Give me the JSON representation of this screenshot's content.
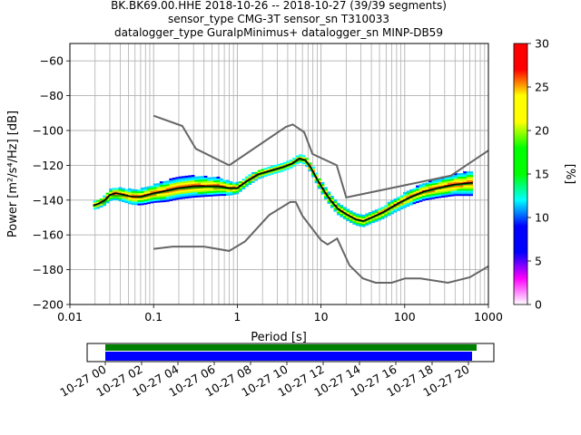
{
  "chart_data": {
    "type": "heatmap",
    "title_lines": [
      "BK.BK69.00.HHE   2018-10-26 -- 2018-10-27  (39/39 segments)",
      "sensor_type CMG-3T sensor_sn T310033",
      "datalogger_type GuralpMinimus+ datalogger_sn MINP-DB59"
    ],
    "xlabel": "Period [s]",
    "ylabel": "Power [m²/s⁴/Hz] [dB]",
    "x_scale": "log",
    "xlim": [
      0.01,
      1000
    ],
    "ylim": [
      -200,
      -50
    ],
    "grid": true,
    "xticks": [
      {
        "v": 0.01,
        "label": "0.01"
      },
      {
        "v": 0.1,
        "label": "0.1"
      },
      {
        "v": 1,
        "label": "1"
      },
      {
        "v": 10,
        "label": "10"
      },
      {
        "v": 100,
        "label": "100"
      },
      {
        "v": 1000,
        "label": "1000"
      }
    ],
    "yticks": [
      -60,
      -80,
      -100,
      -120,
      -140,
      -160,
      -180,
      -200
    ],
    "nhnm": [
      [
        0.1,
        -91.5
      ],
      [
        0.22,
        -97.4
      ],
      [
        0.32,
        -110.5
      ],
      [
        0.8,
        -120
      ],
      [
        3.8,
        -97.9
      ],
      [
        4.6,
        -96.5
      ],
      [
        6.3,
        -101
      ],
      [
        7.9,
        -113.5
      ],
      [
        15.4,
        -120
      ],
      [
        20,
        -138.5
      ],
      [
        354.8,
        -126
      ],
      [
        1000,
        -111.5
      ]
    ],
    "nlnm": [
      [
        0.1,
        -168
      ],
      [
        0.17,
        -166.7
      ],
      [
        0.4,
        -166.7
      ],
      [
        0.8,
        -169.2
      ],
      [
        1.24,
        -163.7
      ],
      [
        2.4,
        -148.6
      ],
      [
        4.3,
        -141.1
      ],
      [
        5,
        -141.1
      ],
      [
        6,
        -149
      ],
      [
        10,
        -163
      ],
      [
        12,
        -165.5
      ],
      [
        15.6,
        -162.1
      ],
      [
        21.9,
        -177.5
      ],
      [
        31.6,
        -185
      ],
      [
        45,
        -187.5
      ],
      [
        70,
        -187.5
      ],
      [
        101,
        -185
      ],
      [
        154,
        -185
      ],
      [
        328,
        -187.5
      ],
      [
        600,
        -184.4
      ],
      [
        1000,
        -178
      ]
    ],
    "mode_curve": [
      [
        0.019,
        -143
      ],
      [
        0.022,
        -142
      ],
      [
        0.026,
        -140
      ],
      [
        0.03,
        -137
      ],
      [
        0.035,
        -136
      ],
      [
        0.045,
        -137
      ],
      [
        0.055,
        -138
      ],
      [
        0.07,
        -138
      ],
      [
        0.085,
        -137
      ],
      [
        0.1,
        -136
      ],
      [
        0.13,
        -135
      ],
      [
        0.16,
        -134
      ],
      [
        0.2,
        -133
      ],
      [
        0.3,
        -132
      ],
      [
        0.45,
        -132
      ],
      [
        0.6,
        -132
      ],
      [
        0.8,
        -133
      ],
      [
        1.0,
        -133
      ],
      [
        1.3,
        -129
      ],
      [
        1.8,
        -125
      ],
      [
        2.5,
        -123
      ],
      [
        3.5,
        -121
      ],
      [
        4.5,
        -119
      ],
      [
        5.5,
        -116
      ],
      [
        6.5,
        -117
      ],
      [
        7.5,
        -121
      ],
      [
        9,
        -128
      ],
      [
        11,
        -135
      ],
      [
        13,
        -140
      ],
      [
        16,
        -145
      ],
      [
        20,
        -148
      ],
      [
        26,
        -151
      ],
      [
        32,
        -152
      ],
      [
        40,
        -150
      ],
      [
        55,
        -147
      ],
      [
        70,
        -144
      ],
      [
        90,
        -141
      ],
      [
        120,
        -138
      ],
      [
        170,
        -135
      ],
      [
        250,
        -133
      ],
      [
        400,
        -131
      ],
      [
        650,
        -130
      ]
    ],
    "mean_curve": [
      [
        0.019,
        -143.5
      ],
      [
        0.026,
        -141
      ],
      [
        0.03,
        -137.5
      ],
      [
        0.045,
        -137.5
      ],
      [
        0.07,
        -138.5
      ],
      [
        0.1,
        -136.5
      ],
      [
        0.2,
        -133.5
      ],
      [
        0.45,
        -132.5
      ],
      [
        0.8,
        -133.5
      ],
      [
        1.0,
        -133.5
      ],
      [
        1.3,
        -129.5
      ],
      [
        1.8,
        -125.5
      ],
      [
        2.5,
        -123.5
      ],
      [
        3.5,
        -121.5
      ],
      [
        4.5,
        -119.5
      ],
      [
        5.5,
        -117
      ],
      [
        6.5,
        -117.5
      ],
      [
        7.5,
        -121.5
      ],
      [
        9,
        -128.5
      ],
      [
        11,
        -135.5
      ],
      [
        13,
        -140.5
      ],
      [
        16,
        -145.5
      ],
      [
        20,
        -148.5
      ],
      [
        26,
        -151.5
      ],
      [
        32,
        -152.5
      ],
      [
        40,
        -150.5
      ],
      [
        55,
        -147.5
      ],
      [
        70,
        -144.5
      ],
      [
        90,
        -141.5
      ],
      [
        120,
        -138.5
      ],
      [
        170,
        -135.5
      ],
      [
        250,
        -133.5
      ],
      [
        400,
        -131.5
      ],
      [
        650,
        -130.5
      ]
    ],
    "density_spread_db": [
      [
        0.019,
        2
      ],
      [
        0.03,
        3
      ],
      [
        0.05,
        4
      ],
      [
        0.1,
        5
      ],
      [
        0.15,
        6
      ],
      [
        0.3,
        6
      ],
      [
        0.6,
        5
      ],
      [
        1.0,
        3
      ],
      [
        2.5,
        2
      ],
      [
        6,
        2
      ],
      [
        10,
        3
      ],
      [
        20,
        3
      ],
      [
        40,
        3
      ],
      [
        100,
        4
      ],
      [
        200,
        5
      ],
      [
        400,
        6
      ],
      [
        650,
        7
      ]
    ],
    "colorbar": {
      "label": "[%]",
      "min": 0,
      "max": 30,
      "ticks": [
        0,
        5,
        10,
        15,
        20,
        25,
        30
      ]
    },
    "timeline": {
      "ticks": [
        "10-27 00",
        "10-27 02",
        "10-27 04",
        "10-27 06",
        "10-27 08",
        "10-27 10",
        "10-27 12",
        "10-27 14",
        "10-27 16",
        "10-27 18",
        "10-27 20"
      ],
      "span_hours": [
        0,
        20.2
      ],
      "green_end_hours": 20.45,
      "colors": {
        "data": "#008000",
        "used": "#0000ff"
      }
    }
  }
}
